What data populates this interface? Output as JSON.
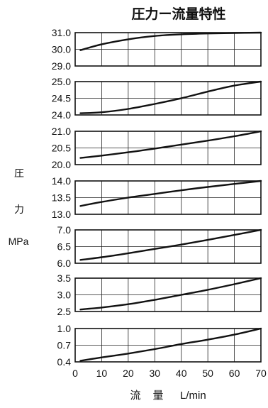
{
  "chart_data": {
    "type": "line",
    "title": "圧力ー流量特性",
    "ylabel_chars": [
      "圧",
      "力"
    ],
    "yunit": "MPa",
    "xlabel_chars": [
      "流",
      "量"
    ],
    "xunit": "L/min",
    "x_ticks": [
      "0",
      "10",
      "20",
      "30",
      "40",
      "50",
      "60",
      "70"
    ],
    "xlim": [
      0,
      70
    ],
    "grid": true,
    "panels": [
      {
        "ylim": [
          29.0,
          31.0
        ],
        "y_ticks": [
          "31.0",
          "30.0",
          "29.0"
        ],
        "x": [
          2,
          10,
          20,
          30,
          40,
          50,
          60,
          70
        ],
        "y": [
          29.95,
          30.3,
          30.6,
          30.8,
          30.9,
          30.95,
          30.98,
          31.0
        ]
      },
      {
        "ylim": [
          24.0,
          25.0
        ],
        "y_ticks": [
          "25.0",
          "24.5",
          "24.0"
        ],
        "x": [
          2,
          10,
          20,
          30,
          40,
          50,
          60,
          70
        ],
        "y": [
          24.05,
          24.08,
          24.18,
          24.33,
          24.5,
          24.7,
          24.88,
          25.0
        ]
      },
      {
        "ylim": [
          20.0,
          21.0
        ],
        "y_ticks": [
          "21.0",
          "20.5",
          "20.0"
        ],
        "x": [
          2,
          10,
          20,
          30,
          40,
          50,
          60,
          70
        ],
        "y": [
          20.2,
          20.27,
          20.37,
          20.48,
          20.6,
          20.72,
          20.85,
          21.0
        ]
      },
      {
        "ylim": [
          13.0,
          14.0
        ],
        "y_ticks": [
          "14.0",
          "13.5",
          "13.0"
        ],
        "x": [
          2,
          10,
          20,
          30,
          40,
          50,
          60,
          70
        ],
        "y": [
          13.25,
          13.37,
          13.5,
          13.61,
          13.72,
          13.82,
          13.91,
          14.0
        ]
      },
      {
        "ylim": [
          6.0,
          7.0
        ],
        "y_ticks": [
          "7.0",
          "6.5",
          "6.0"
        ],
        "x": [
          2,
          10,
          20,
          30,
          40,
          50,
          60,
          70
        ],
        "y": [
          6.1,
          6.18,
          6.3,
          6.43,
          6.56,
          6.7,
          6.85,
          7.0
        ]
      },
      {
        "ylim": [
          2.5,
          3.5
        ],
        "y_ticks": [
          "3.5",
          "3.0",
          "2.5"
        ],
        "x": [
          2,
          10,
          20,
          30,
          40,
          50,
          60,
          70
        ],
        "y": [
          2.56,
          2.62,
          2.72,
          2.85,
          3.0,
          3.15,
          3.32,
          3.5
        ]
      },
      {
        "ylim": [
          0.4,
          1.0
        ],
        "y_ticks": [
          "1.0",
          "0.7",
          "0.4"
        ],
        "x": [
          2,
          10,
          20,
          30,
          40,
          50,
          60,
          70
        ],
        "y": [
          0.42,
          0.48,
          0.55,
          0.63,
          0.72,
          0.8,
          0.89,
          1.0
        ]
      }
    ]
  }
}
